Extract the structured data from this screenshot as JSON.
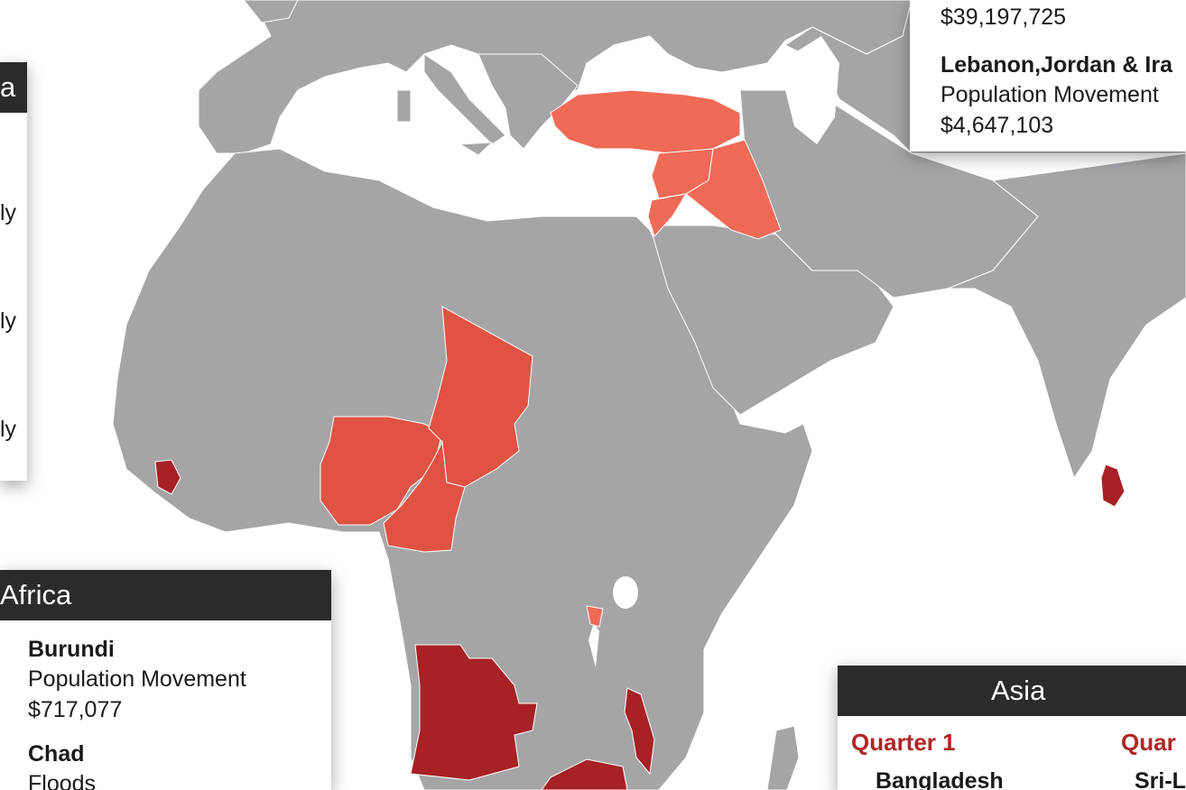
{
  "colors": {
    "land": "#a5a5a8",
    "water": "#ffffff",
    "quarter_1": "#a72125",
    "quarter_2": "#e05343",
    "quarter_3": "#f06a58",
    "panel_header": "#2a2b2a",
    "quarter_label": "#b02626"
  },
  "left_panel": {
    "header": "a",
    "fragments": [
      "ly",
      "ly",
      "ly"
    ]
  },
  "top_right_panel": {
    "entries": [
      {
        "name": "",
        "type": "",
        "amount": "$39,197,725"
      },
      {
        "name": "Lebanon,Jordan & Ira",
        "type": "Population Movement",
        "amount": "$4,647,103"
      }
    ]
  },
  "africa_panel": {
    "header": "Africa",
    "entries": [
      {
        "name": "Burundi",
        "type": "Population Movement",
        "amount": "$717,077"
      },
      {
        "name": "Chad",
        "type": "Floods"
      }
    ]
  },
  "asia_panel": {
    "header": "Asia",
    "quarter_1": {
      "label": "Quarter 1",
      "first": "Bangladesh"
    },
    "quarter_2": {
      "label": "Quar",
      "first": "Sri-L"
    }
  }
}
